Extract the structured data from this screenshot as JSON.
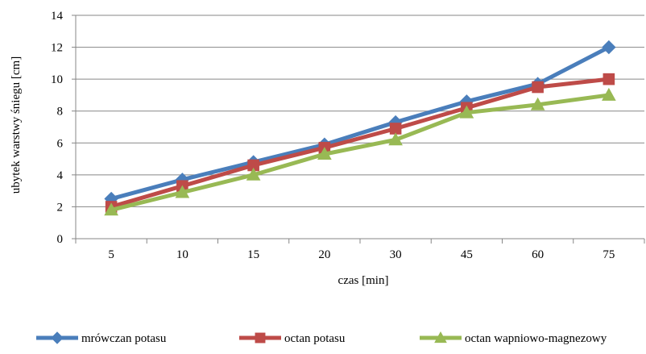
{
  "chart_data": {
    "type": "line",
    "title": "",
    "xlabel": "czas [min]",
    "ylabel": "ubytek warstwy śniegu [cm]",
    "categories": [
      "5",
      "10",
      "15",
      "20",
      "30",
      "45",
      "60",
      "75"
    ],
    "ylim": [
      0,
      14
    ],
    "yticks": [
      0,
      2,
      4,
      6,
      8,
      10,
      12,
      14
    ],
    "grid": true,
    "legend_position": "bottom",
    "series": [
      {
        "name": "mrówczan potasu",
        "values": [
          2.5,
          3.7,
          4.8,
          5.9,
          7.3,
          8.6,
          9.7,
          12.0
        ],
        "color": "#4a7ebb",
        "marker": "diamond"
      },
      {
        "name": "octan potasu",
        "values": [
          2.0,
          3.3,
          4.6,
          5.7,
          6.9,
          8.2,
          9.5,
          10.0
        ],
        "color": "#be4b48",
        "marker": "square"
      },
      {
        "name": "octan wapniowo-magnezowy",
        "values": [
          1.8,
          2.9,
          4.0,
          5.3,
          6.2,
          7.9,
          8.4,
          9.0
        ],
        "color": "#98b954",
        "marker": "triangle"
      }
    ]
  }
}
